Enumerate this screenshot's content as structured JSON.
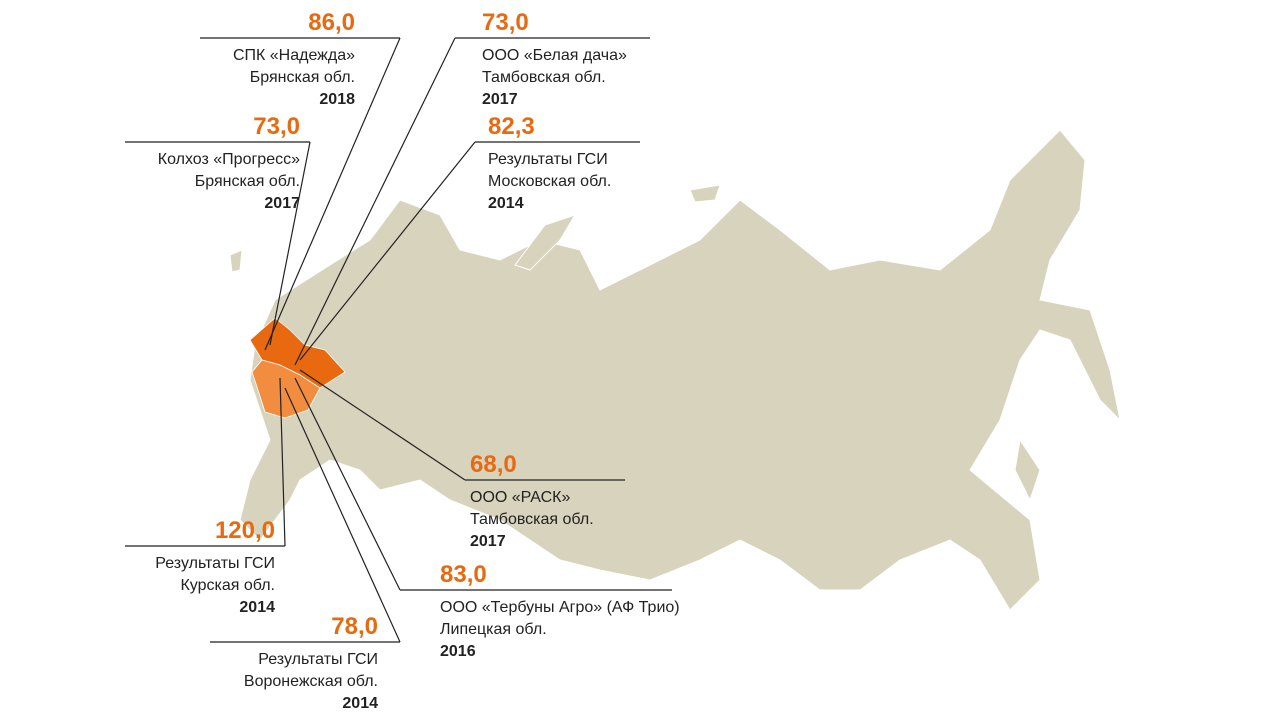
{
  "callouts": [
    {
      "value": "86,0",
      "name": "СПК «Надежда»",
      "region": "Брянская обл.",
      "year": "2018"
    },
    {
      "value": "73,0",
      "name": "ООО «Белая дача»",
      "region": "Тамбовская обл.",
      "year": "2017"
    },
    {
      "value": "73,0",
      "name": "Колхоз «Прогресс»",
      "region": "Брянская обл.",
      "year": "2017"
    },
    {
      "value": "82,3",
      "name": "Результаты ГСИ",
      "region": "Московская обл.",
      "year": "2014"
    },
    {
      "value": "68,0",
      "name": "ООО «РАСК»",
      "region": "Тамбовская обл.",
      "year": "2017"
    },
    {
      "value": "120,0",
      "name": "Результаты ГСИ",
      "region": "Курская обл.",
      "year": "2014"
    },
    {
      "value": "83,0",
      "name": "ООО «Тербуны Агро» (АФ Трио)",
      "region": "Липецкая обл.",
      "year": "2016"
    },
    {
      "value": "78,0",
      "name": "Результаты ГСИ",
      "region": "Воронежская обл.",
      "year": "2014"
    }
  ]
}
